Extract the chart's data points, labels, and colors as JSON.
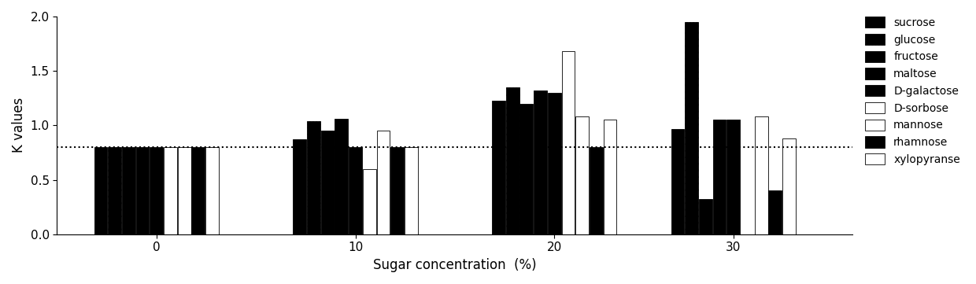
{
  "groups": [
    0,
    10,
    20,
    30
  ],
  "series": [
    {
      "label": "sucrose",
      "color": "black",
      "hatch": "",
      "values": [
        0.8,
        0.87,
        1.23,
        0.97
      ]
    },
    {
      "label": "glucose",
      "color": "black",
      "hatch": "....",
      "values": [
        0.8,
        1.04,
        1.35,
        1.95
      ]
    },
    {
      "label": "fructose",
      "color": "black",
      "hatch": "",
      "values": [
        0.8,
        0.95,
        1.2,
        0.32
      ]
    },
    {
      "label": "maltose",
      "color": "black",
      "hatch": "",
      "values": [
        0.8,
        1.06,
        1.32,
        1.05
      ]
    },
    {
      "label": "D-galactose",
      "color": "black",
      "hatch": "",
      "values": [
        0.8,
        0.8,
        1.3,
        1.05
      ]
    },
    {
      "label": "D-sorbose",
      "color": "white",
      "hatch": "",
      "values": [
        0.8,
        0.6,
        1.68,
        0.0
      ]
    },
    {
      "label": "mannose",
      "color": "white",
      "hatch": "",
      "values": [
        0.8,
        0.95,
        1.08,
        1.08
      ]
    },
    {
      "label": "rhamnose",
      "color": "black",
      "hatch": "",
      "values": [
        0.8,
        0.8,
        0.8,
        0.4
      ]
    },
    {
      "label": "xylopyranse",
      "color": "white",
      "hatch": "",
      "values": [
        0.8,
        0.8,
        1.05,
        0.88
      ]
    }
  ],
  "ref_line": 0.8,
  "ylim": [
    0.0,
    2.0
  ],
  "ylabel": "K values",
  "xlabel": "Sugar concentration  (%)",
  "xtick_labels": [
    "0",
    "10",
    "20",
    "30"
  ],
  "group_positions": [
    5,
    15,
    25,
    34
  ],
  "bar_width": 0.7,
  "legend_fontsize": 10,
  "axis_fontsize": 12,
  "xlim": [
    0,
    40
  ]
}
